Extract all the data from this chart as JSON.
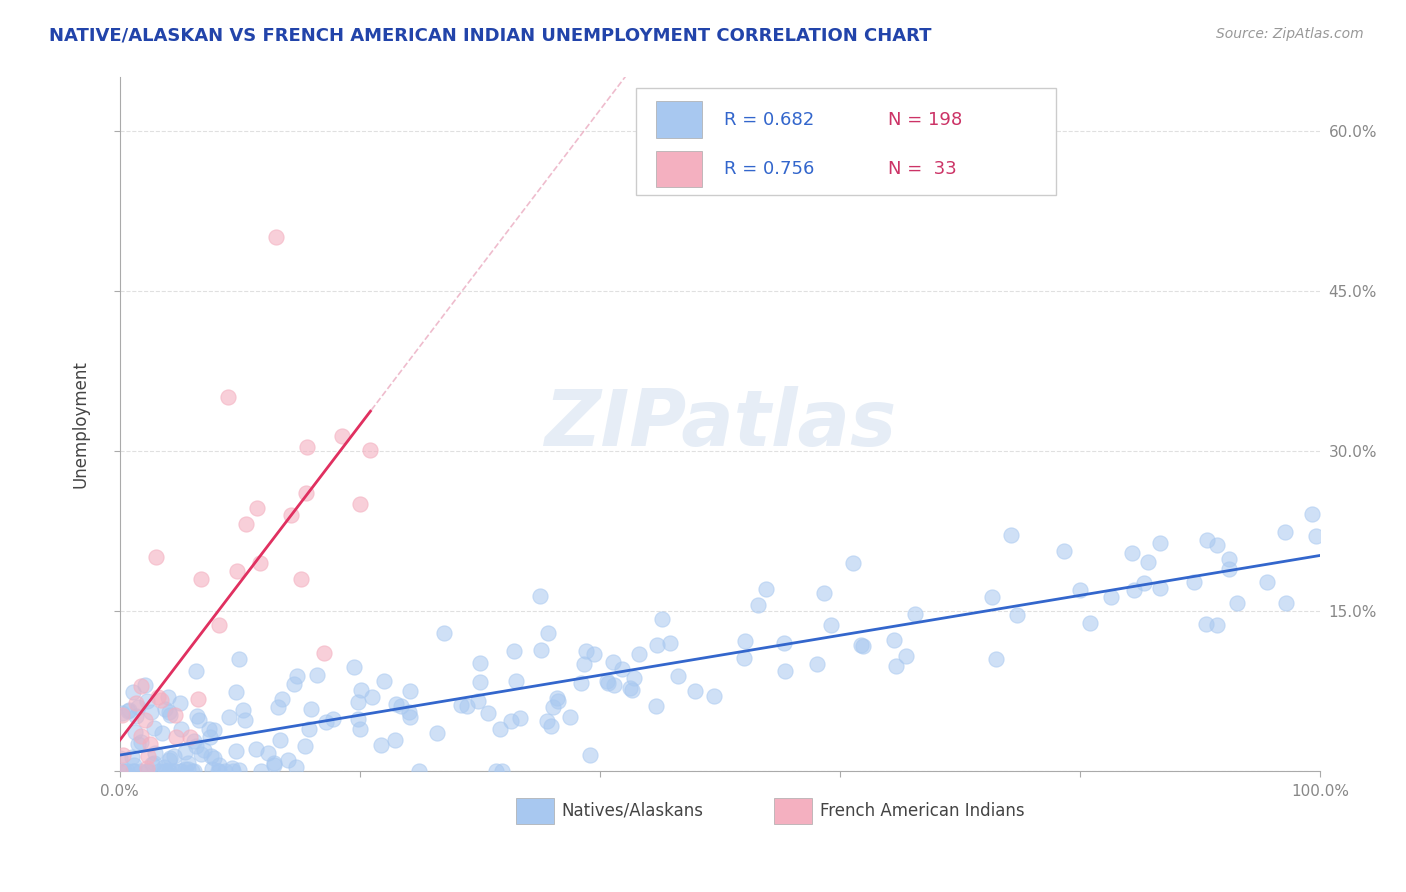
{
  "title": "NATIVE/ALASKAN VS FRENCH AMERICAN INDIAN UNEMPLOYMENT CORRELATION CHART",
  "source": "Source: ZipAtlas.com",
  "ylabel": "Unemployment",
  "xlim": [
    0,
    100
  ],
  "ylim": [
    0,
    65
  ],
  "yticks": [
    0,
    15,
    30,
    45,
    60
  ],
  "ytick_labels": [
    "",
    "15.0%",
    "30.0%",
    "45.0%",
    "60.0%"
  ],
  "xticks": [
    0,
    20,
    40,
    60,
    80,
    100
  ],
  "xtick_labels": [
    "0.0%",
    "",
    "",
    "",
    "",
    "100.0%"
  ],
  "blue_color": "#a8c8f0",
  "pink_color": "#f4b0c0",
  "blue_line_color": "#3366cc",
  "pink_line_color": "#e03060",
  "pink_dash_color": "#e8a0b8",
  "legend_blue_r": "R = 0.682",
  "legend_blue_n": "N = 198",
  "legend_pink_r": "R = 0.756",
  "legend_pink_n": "N =  33",
  "n_blue": 198,
  "n_pink": 33,
  "watermark": "ZIPatlas",
  "watermark_zip_color": "#c8d8ec",
  "watermark_atlas_color": "#c8d8ec",
  "background_color": "#ffffff",
  "grid_color": "#cccccc",
  "title_color": "#2244aa",
  "source_color": "#999999",
  "ylabel_color": "#444444",
  "legend_r_color": "#3366cc",
  "legend_n_color": "#cc3366",
  "axis_color": "#aaaaaa",
  "tick_label_color": "#888888"
}
